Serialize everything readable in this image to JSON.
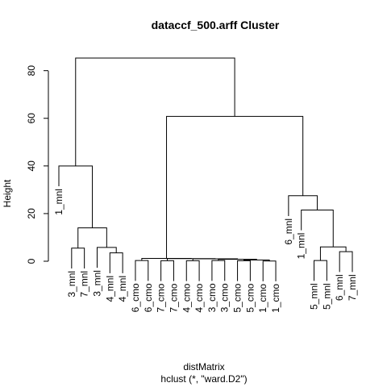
{
  "chart_data": {
    "type": "dendrogram",
    "title": "dataccf_500.arff Cluster",
    "xlabel": "distMatrix",
    "sub": "hclust (*, \"ward.D2\")",
    "ylabel": "Height",
    "ylim": [
      0,
      90
    ],
    "yticks": [
      0,
      20,
      40,
      60,
      80
    ],
    "leaves": [
      "1_mnl",
      "3_mnl",
      "7_mnl",
      "3_mnl",
      "4_mnl",
      "4_mnl",
      "6_cmo",
      "6_cmo",
      "7_cmo",
      "7_cmo",
      "4_cmo",
      "4_cmo",
      "3_cmo",
      "3_cmo",
      "5_cmo",
      "5_cmo",
      "1_cmo",
      "1_cmo",
      "6_mnl",
      "1_mnl",
      "5_mnl",
      "5_mnl",
      "6_mnl",
      "7_mnl"
    ],
    "merges": [
      [
        -2,
        -3,
        5.5
      ],
      [
        -5,
        -6,
        3.5
      ],
      [
        -4,
        2,
        5.8
      ],
      [
        1,
        3,
        14
      ],
      [
        -1,
        4,
        40
      ],
      [
        -7,
        -8,
        0.3
      ],
      [
        -9,
        -10,
        0.2
      ],
      [
        -11,
        -12,
        0.2
      ],
      [
        -13,
        -14,
        0.3
      ],
      [
        -15,
        -16,
        0.2
      ],
      [
        -17,
        -18,
        0.1
      ],
      [
        10,
        11,
        0.5
      ],
      [
        9,
        12,
        0.8
      ],
      [
        8,
        13,
        1.0
      ],
      [
        7,
        14,
        1.1
      ],
      [
        6,
        15,
        1.2
      ],
      [
        -21,
        -22,
        0.3
      ],
      [
        -23,
        -24,
        4.0
      ],
      [
        17,
        18,
        6.0
      ],
      [
        -20,
        19,
        21.5
      ],
      [
        -19,
        20,
        27.5
      ],
      [
        16,
        21,
        60.8
      ],
      [
        5,
        22,
        85.3
      ]
    ]
  }
}
